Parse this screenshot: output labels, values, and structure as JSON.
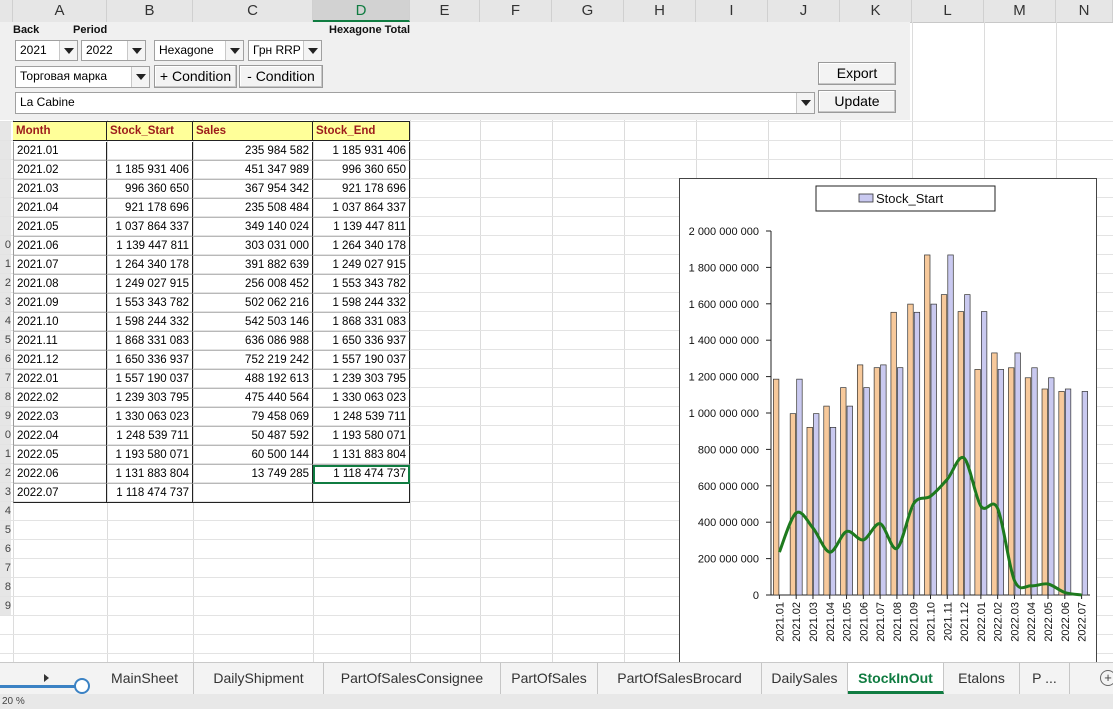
{
  "columns": [
    "A",
    "B",
    "C",
    "D",
    "E",
    "F",
    "G",
    "H",
    "I",
    "J",
    "K",
    "L",
    "M",
    "N"
  ],
  "selected_column": "D",
  "controls": {
    "back_label": "Back",
    "period_label": "Period",
    "total_label": "Hexagone Total",
    "year_from": "2021",
    "year_to": "2022",
    "brand_select": "Hexagone",
    "price_type": "Грн RRP",
    "attribute_select": "Торговая марка",
    "add_condition": "+ Condition",
    "remove_condition": "- Condition",
    "export_label": "Export",
    "update_label": "Update",
    "filter_value": "La Cabine"
  },
  "table": {
    "headers": [
      "Month",
      "Stock_Start",
      "Sales",
      "Stock_End"
    ],
    "rows": [
      [
        "2021.01",
        "",
        "235 984 582",
        "1 185 931 406"
      ],
      [
        "2021.02",
        "1 185 931 406",
        "451 347 989",
        "996 360 650"
      ],
      [
        "2021.03",
        "996 360 650",
        "367 954 342",
        "921 178 696"
      ],
      [
        "2021.04",
        "921 178 696",
        "235 508 484",
        "1 037 864 337"
      ],
      [
        "2021.05",
        "1 037 864 337",
        "349 140 024",
        "1 139 447 811"
      ],
      [
        "2021.06",
        "1 139 447 811",
        "303 031 000",
        "1 264 340 178"
      ],
      [
        "2021.07",
        "1 264 340 178",
        "391 882 639",
        "1 249 027 915"
      ],
      [
        "2021.08",
        "1 249 027 915",
        "256 008 452",
        "1 553 343 782"
      ],
      [
        "2021.09",
        "1 553 343 782",
        "502 062 216",
        "1 598 244 332"
      ],
      [
        "2021.10",
        "1 598 244 332",
        "542 503 146",
        "1 868 331 083"
      ],
      [
        "2021.11",
        "1 868 331 083",
        "636 086 988",
        "1 650 336 937"
      ],
      [
        "2021.12",
        "1 650 336 937",
        "752 219 242",
        "1 557 190 037"
      ],
      [
        "2022.01",
        "1 557 190 037",
        "488 192 613",
        "1 239 303 795"
      ],
      [
        "2022.02",
        "1 239 303 795",
        "475 440 564",
        "1 330 063 023"
      ],
      [
        "2022.03",
        "1 330 063 023",
        "79 458 069",
        "1 248 539 711"
      ],
      [
        "2022.04",
        "1 248 539 711",
        "50 487 592",
        "1 193 580 071"
      ],
      [
        "2022.05",
        "1 193 580 071",
        "60 500 144",
        "1 131 883 804"
      ],
      [
        "2022.06",
        "1 131 883 804",
        "13 749 285",
        "1 118 474 737"
      ],
      [
        "2022.07",
        "1 118 474 737",
        "",
        ""
      ]
    ],
    "row_numbers": [
      "",
      "",
      "",
      "",
      "",
      "",
      "0",
      "1",
      "2",
      "3",
      "4",
      "5",
      "6",
      "7",
      "8",
      "9",
      "0",
      "1",
      "2",
      "3",
      "4",
      "5",
      "6",
      "7",
      "8",
      "9"
    ]
  },
  "chart_data": {
    "type": "bar",
    "categories": [
      "2021.01",
      "2021.02",
      "2021.03",
      "2021.04",
      "2021.05",
      "2021.06",
      "2021.07",
      "2021.08",
      "2021.09",
      "2021.10",
      "2021.11",
      "2021.12",
      "2022.01",
      "2022.02",
      "2022.03",
      "2022.04",
      "2022.05",
      "2022.06",
      "2022.07"
    ],
    "series": [
      {
        "name": "Stock_Start",
        "kind": "bar",
        "color": "#c9c9f0",
        "values": [
          0,
          1185931406,
          996360650,
          921178696,
          1037864337,
          1139447811,
          1264340178,
          1249027915,
          1553343782,
          1598244332,
          1868331083,
          1650336937,
          1557190037,
          1239303795,
          1330063023,
          1248539711,
          1193580071,
          1131883804,
          1118474737
        ]
      },
      {
        "kind": "bar",
        "color": "#f7c99b",
        "values": [
          1185931406,
          996360650,
          921178696,
          1037864337,
          1139447811,
          1264340178,
          1249027915,
          1553343782,
          1598244332,
          1868331083,
          1650336937,
          1557190037,
          1239303795,
          1330063023,
          1248539711,
          1193580071,
          1131883804,
          1118474737,
          0
        ]
      },
      {
        "kind": "line",
        "color": "#1e7a1e",
        "values": [
          235984582,
          451347989,
          367954342,
          235508484,
          349140024,
          303031000,
          391882639,
          256008452,
          502062216,
          542503146,
          636086988,
          752219242,
          488192613,
          475440564,
          79458069,
          50487592,
          60500144,
          13749285,
          0
        ]
      }
    ],
    "legend": [
      "Stock_Start"
    ],
    "legend_position": "top",
    "ylim": [
      0,
      2000000000
    ],
    "yticks": [
      0,
      200000000,
      400000000,
      600000000,
      800000000,
      1000000000,
      1200000000,
      1400000000,
      1600000000,
      1800000000,
      2000000000
    ],
    "ytick_labels": [
      "0",
      "200 000 000",
      "400 000 000",
      "600 000 000",
      "800 000 000",
      "1 000 000 000",
      "1 200 000 000",
      "1 400 000 000",
      "1 600 000 000",
      "1 800 000 000",
      "2 000 000 000"
    ],
    "grid": false
  },
  "tabs": [
    "MainSheet",
    "DailyShipment",
    "PartOfSalesConsignee",
    "PartOfSales",
    "PartOfSalesBrocard",
    "DailySales",
    "StockInOut",
    "Etalons",
    "P ..."
  ],
  "active_tab": "StockInOut",
  "status_text": "20 %"
}
